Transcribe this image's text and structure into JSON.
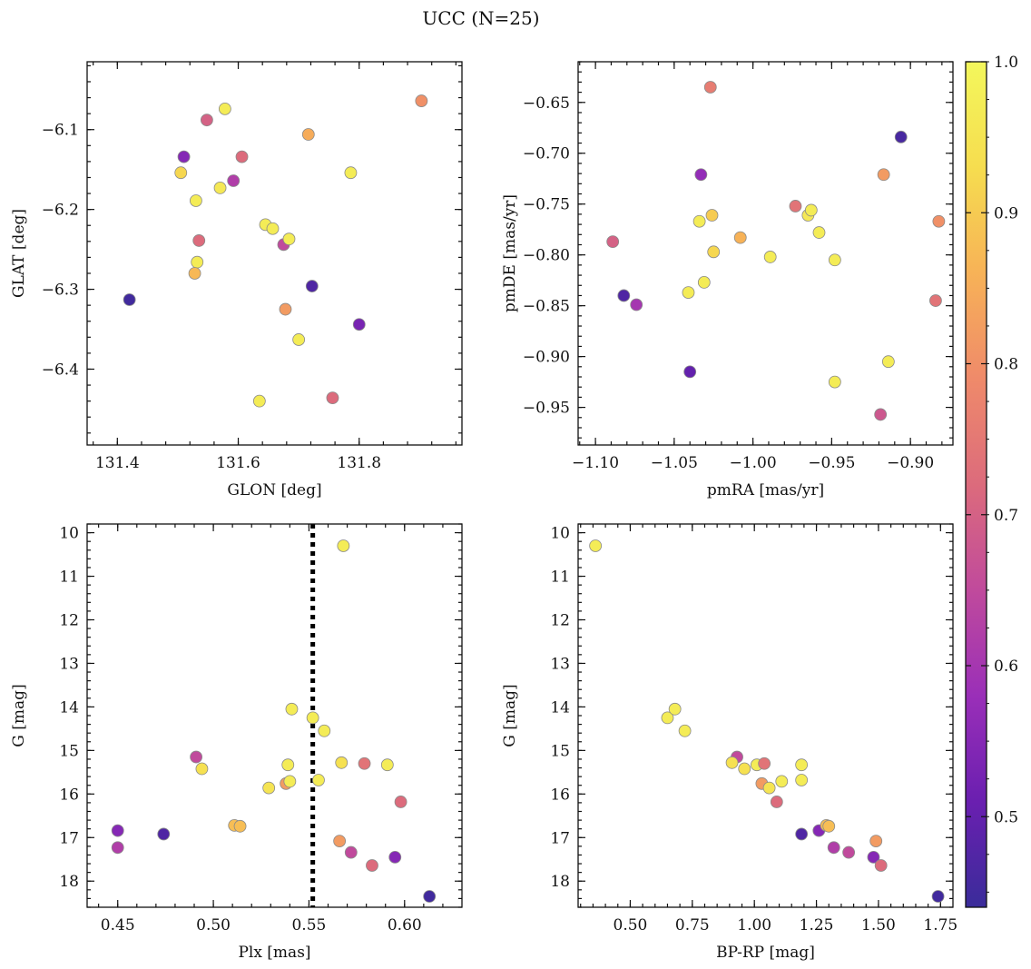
{
  "figure": {
    "title": "UCC (N=25)"
  },
  "colorbar": {
    "range": [
      0.44,
      1.0
    ],
    "ticks": [
      0.5,
      0.6,
      0.7,
      0.8,
      0.9,
      1.0
    ],
    "tick_labels": [
      "0.5",
      "0.6",
      "0.7",
      "0.8",
      "0.9",
      "1.0"
    ],
    "colormap": "plasma",
    "stops": [
      "#3a2c9a",
      "#6a1fb0",
      "#9a2fb8",
      "#c04a9c",
      "#dc6b7c",
      "#ef8a6a",
      "#f7b257",
      "#f6dd4f",
      "#f3f75c"
    ]
  },
  "point_style": {
    "edge": "#8a8a8a"
  },
  "reference_line": {
    "plx": 0.552,
    "color": "#000000",
    "style": "dotted"
  },
  "chart_data": [
    {
      "type": "scatter",
      "xlabel": "GLON [deg]",
      "ylabel": "GLAT [deg]",
      "xlim": [
        131.35,
        131.97
      ],
      "ylim": [
        -6.495,
        -6.015
      ],
      "xticks": [
        131.4,
        131.6,
        131.8
      ],
      "xtick_labels": [
        "131.4",
        "131.6",
        "131.8"
      ],
      "yticks": [
        -6.1,
        -6.2,
        -6.3,
        -6.4
      ],
      "ytick_labels": [
        "−6.1",
        "−6.2",
        "−6.3",
        "−6.4"
      ],
      "points": [
        {
          "x": 131.42,
          "y": -6.313,
          "c": 0.45
        },
        {
          "x": 131.51,
          "y": -6.134,
          "c": 0.55
        },
        {
          "x": 131.505,
          "y": -6.154,
          "c": 0.92
        },
        {
          "x": 131.53,
          "y": -6.189,
          "c": 0.97
        },
        {
          "x": 131.535,
          "y": -6.239,
          "c": 0.72
        },
        {
          "x": 131.532,
          "y": -6.266,
          "c": 0.97
        },
        {
          "x": 131.528,
          "y": -6.28,
          "c": 0.87
        },
        {
          "x": 131.548,
          "y": -6.088,
          "c": 0.7
        },
        {
          "x": 131.578,
          "y": -6.074,
          "c": 0.97
        },
        {
          "x": 131.57,
          "y": -6.173,
          "c": 0.96
        },
        {
          "x": 131.592,
          "y": -6.164,
          "c": 0.62
        },
        {
          "x": 131.606,
          "y": -6.134,
          "c": 0.72
        },
        {
          "x": 131.645,
          "y": -6.219,
          "c": 0.97
        },
        {
          "x": 131.657,
          "y": -6.224,
          "c": 0.97
        },
        {
          "x": 131.675,
          "y": -6.244,
          "c": 0.65
        },
        {
          "x": 131.684,
          "y": -6.237,
          "c": 0.97
        },
        {
          "x": 131.678,
          "y": -6.325,
          "c": 0.82
        },
        {
          "x": 131.635,
          "y": -6.44,
          "c": 0.97
        },
        {
          "x": 131.7,
          "y": -6.363,
          "c": 0.97
        },
        {
          "x": 131.716,
          "y": -6.106,
          "c": 0.85
        },
        {
          "x": 131.722,
          "y": -6.296,
          "c": 0.47
        },
        {
          "x": 131.756,
          "y": -6.436,
          "c": 0.72
        },
        {
          "x": 131.786,
          "y": -6.154,
          "c": 0.97
        },
        {
          "x": 131.8,
          "y": -6.344,
          "c": 0.53
        },
        {
          "x": 131.903,
          "y": -6.064,
          "c": 0.8
        }
      ]
    },
    {
      "type": "scatter",
      "xlabel": "pmRA [mas/yr]",
      "ylabel": "pmDE [mas/yr]",
      "xlim": [
        -1.111,
        -0.873
      ],
      "ylim": [
        -0.987,
        -0.61
      ],
      "xticks": [
        -1.1,
        -1.05,
        -1.0,
        -0.95,
        -0.9
      ],
      "xtick_labels": [
        "−1.10",
        "−1.05",
        "−1.00",
        "−0.95",
        "−0.90"
      ],
      "yticks": [
        -0.65,
        -0.7,
        -0.75,
        -0.8,
        -0.85,
        -0.9,
        -0.95
      ],
      "ytick_labels": [
        "−0.65",
        "−0.70",
        "−0.75",
        "−0.80",
        "−0.85",
        "−0.90",
        "−0.95"
      ],
      "points": [
        {
          "x": -1.089,
          "y": -0.787,
          "c": 0.7
        },
        {
          "x": -1.082,
          "y": -0.84,
          "c": 0.47
        },
        {
          "x": -1.074,
          "y": -0.849,
          "c": 0.6
        },
        {
          "x": -1.041,
          "y": -0.837,
          "c": 0.97
        },
        {
          "x": -1.04,
          "y": -0.915,
          "c": 0.5
        },
        {
          "x": -1.034,
          "y": -0.767,
          "c": 0.97
        },
        {
          "x": -1.033,
          "y": -0.721,
          "c": 0.57
        },
        {
          "x": -1.031,
          "y": -0.827,
          "c": 0.97
        },
        {
          "x": -1.027,
          "y": -0.635,
          "c": 0.76
        },
        {
          "x": -1.026,
          "y": -0.761,
          "c": 0.9
        },
        {
          "x": -1.025,
          "y": -0.797,
          "c": 0.92
        },
        {
          "x": -1.008,
          "y": -0.783,
          "c": 0.86
        },
        {
          "x": -0.989,
          "y": -0.802,
          "c": 0.97
        },
        {
          "x": -0.973,
          "y": -0.752,
          "c": 0.74
        },
        {
          "x": -0.965,
          "y": -0.761,
          "c": 0.96
        },
        {
          "x": -0.963,
          "y": -0.756,
          "c": 0.97
        },
        {
          "x": -0.958,
          "y": -0.778,
          "c": 0.97
        },
        {
          "x": -0.948,
          "y": -0.805,
          "c": 0.97
        },
        {
          "x": -0.948,
          "y": -0.925,
          "c": 0.97
        },
        {
          "x": -0.919,
          "y": -0.957,
          "c": 0.68
        },
        {
          "x": -0.917,
          "y": -0.721,
          "c": 0.82
        },
        {
          "x": -0.914,
          "y": -0.905,
          "c": 0.97
        },
        {
          "x": -0.906,
          "y": -0.684,
          "c": 0.46
        },
        {
          "x": -0.884,
          "y": -0.845,
          "c": 0.74
        },
        {
          "x": -0.882,
          "y": -0.767,
          "c": 0.8
        }
      ]
    },
    {
      "type": "scatter",
      "xlabel": "Plx [mas]",
      "ylabel": "G [mag]",
      "xlim": [
        0.434,
        0.63
      ],
      "ylim": [
        18.6,
        9.8
      ],
      "xticks": [
        0.45,
        0.5,
        0.55,
        0.6
      ],
      "xtick_labels": [
        "0.45",
        "0.50",
        "0.55",
        "0.60"
      ],
      "yticks": [
        10,
        11,
        12,
        13,
        14,
        15,
        16,
        17,
        18
      ],
      "ytick_labels": [
        "10",
        "11",
        "12",
        "13",
        "14",
        "15",
        "16",
        "17",
        "18"
      ],
      "points": [
        {
          "x": 0.568,
          "y": 10.3,
          "c": 0.97
        },
        {
          "x": 0.541,
          "y": 14.05,
          "c": 0.97
        },
        {
          "x": 0.552,
          "y": 14.25,
          "c": 0.97
        },
        {
          "x": 0.558,
          "y": 14.55,
          "c": 0.97
        },
        {
          "x": 0.491,
          "y": 15.15,
          "c": 0.65
        },
        {
          "x": 0.494,
          "y": 15.42,
          "c": 0.94
        },
        {
          "x": 0.539,
          "y": 15.33,
          "c": 0.97
        },
        {
          "x": 0.567,
          "y": 15.28,
          "c": 0.94
        },
        {
          "x": 0.579,
          "y": 15.3,
          "c": 0.74
        },
        {
          "x": 0.591,
          "y": 15.33,
          "c": 0.97
        },
        {
          "x": 0.538,
          "y": 15.76,
          "c": 0.82
        },
        {
          "x": 0.54,
          "y": 15.71,
          "c": 0.97
        },
        {
          "x": 0.555,
          "y": 15.68,
          "c": 0.97
        },
        {
          "x": 0.529,
          "y": 15.86,
          "c": 0.95
        },
        {
          "x": 0.598,
          "y": 16.18,
          "c": 0.72
        },
        {
          "x": 0.45,
          "y": 16.84,
          "c": 0.55
        },
        {
          "x": 0.474,
          "y": 16.92,
          "c": 0.47
        },
        {
          "x": 0.511,
          "y": 16.72,
          "c": 0.88
        },
        {
          "x": 0.514,
          "y": 16.74,
          "c": 0.88
        },
        {
          "x": 0.566,
          "y": 17.08,
          "c": 0.82
        },
        {
          "x": 0.45,
          "y": 17.23,
          "c": 0.62
        },
        {
          "x": 0.572,
          "y": 17.34,
          "c": 0.65
        },
        {
          "x": 0.595,
          "y": 17.45,
          "c": 0.55
        },
        {
          "x": 0.583,
          "y": 17.64,
          "c": 0.72
        },
        {
          "x": 0.613,
          "y": 18.35,
          "c": 0.45
        }
      ]
    },
    {
      "type": "scatter",
      "xlabel": "BP-RP [mag]",
      "ylabel": "G [mag]",
      "xlim": [
        0.29,
        1.8
      ],
      "ylim": [
        18.6,
        9.8
      ],
      "xticks": [
        0.5,
        0.75,
        1.0,
        1.25,
        1.5,
        1.75
      ],
      "xtick_labels": [
        "0.50",
        "0.75",
        "1.00",
        "1.25",
        "1.50",
        "1.75"
      ],
      "yticks": [
        10,
        11,
        12,
        13,
        14,
        15,
        16,
        17,
        18
      ],
      "ytick_labels": [
        "10",
        "11",
        "12",
        "13",
        "14",
        "15",
        "16",
        "17",
        "18"
      ],
      "points": [
        {
          "x": 0.36,
          "y": 10.3,
          "c": 0.97
        },
        {
          "x": 0.65,
          "y": 14.25,
          "c": 0.97
        },
        {
          "x": 0.68,
          "y": 14.05,
          "c": 0.97
        },
        {
          "x": 0.72,
          "y": 14.55,
          "c": 0.97
        },
        {
          "x": 0.93,
          "y": 15.15,
          "c": 0.65
        },
        {
          "x": 0.91,
          "y": 15.28,
          "c": 0.94
        },
        {
          "x": 0.96,
          "y": 15.42,
          "c": 0.94
        },
        {
          "x": 1.01,
          "y": 15.33,
          "c": 0.97
        },
        {
          "x": 1.04,
          "y": 15.3,
          "c": 0.74
        },
        {
          "x": 1.03,
          "y": 15.76,
          "c": 0.82
        },
        {
          "x": 1.06,
          "y": 15.86,
          "c": 0.95
        },
        {
          "x": 1.11,
          "y": 15.71,
          "c": 0.97
        },
        {
          "x": 1.19,
          "y": 15.33,
          "c": 0.97
        },
        {
          "x": 1.19,
          "y": 15.68,
          "c": 0.97
        },
        {
          "x": 1.09,
          "y": 16.18,
          "c": 0.72
        },
        {
          "x": 1.19,
          "y": 16.92,
          "c": 0.47
        },
        {
          "x": 1.26,
          "y": 16.84,
          "c": 0.55
        },
        {
          "x": 1.29,
          "y": 16.72,
          "c": 0.88
        },
        {
          "x": 1.3,
          "y": 16.74,
          "c": 0.88
        },
        {
          "x": 1.49,
          "y": 17.08,
          "c": 0.82
        },
        {
          "x": 1.32,
          "y": 17.23,
          "c": 0.62
        },
        {
          "x": 1.38,
          "y": 17.34,
          "c": 0.65
        },
        {
          "x": 1.48,
          "y": 17.45,
          "c": 0.55
        },
        {
          "x": 1.51,
          "y": 17.64,
          "c": 0.72
        },
        {
          "x": 1.74,
          "y": 18.35,
          "c": 0.45
        }
      ]
    }
  ]
}
